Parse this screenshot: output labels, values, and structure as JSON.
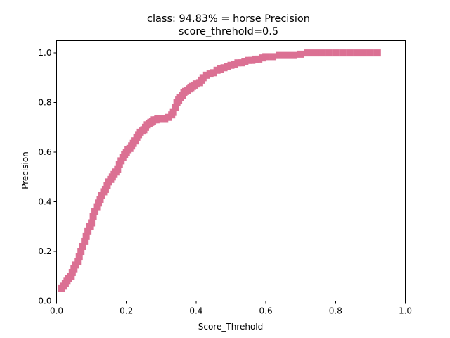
{
  "chart_data": {
    "type": "scatter",
    "title": "class: 94.83% = horse Precision",
    "subtitle": "score_threhold=0.5",
    "xlabel": "Score_Threhold",
    "ylabel": "Precision",
    "xlim": [
      0.0,
      1.0
    ],
    "ylim": [
      0.0,
      1.05
    ],
    "xticks": [
      "0.0",
      "0.2",
      "0.4",
      "0.6",
      "0.8",
      "1.0"
    ],
    "yticks": [
      "0.0",
      "0.2",
      "0.4",
      "0.6",
      "0.8",
      "1.0"
    ],
    "grid": false,
    "marker": "square",
    "series": [
      {
        "color": "#db7093",
        "x": [
          0.015,
          0.02,
          0.025,
          0.03,
          0.035,
          0.04,
          0.045,
          0.05,
          0.055,
          0.06,
          0.065,
          0.07,
          0.075,
          0.08,
          0.085,
          0.09,
          0.095,
          0.1,
          0.105,
          0.11,
          0.115,
          0.12,
          0.125,
          0.13,
          0.135,
          0.14,
          0.145,
          0.15,
          0.155,
          0.16,
          0.165,
          0.17,
          0.175,
          0.18,
          0.185,
          0.19,
          0.195,
          0.2,
          0.205,
          0.21,
          0.215,
          0.22,
          0.225,
          0.23,
          0.235,
          0.24,
          0.245,
          0.25,
          0.255,
          0.26,
          0.265,
          0.27,
          0.275,
          0.28,
          0.285,
          0.29,
          0.295,
          0.3,
          0.31,
          0.32,
          0.33,
          0.335,
          0.34,
          0.345,
          0.35,
          0.355,
          0.36,
          0.365,
          0.37,
          0.375,
          0.38,
          0.385,
          0.39,
          0.395,
          0.4,
          0.41,
          0.415,
          0.42,
          0.43,
          0.44,
          0.45,
          0.46,
          0.47,
          0.48,
          0.49,
          0.5,
          0.51,
          0.52,
          0.53,
          0.54,
          0.55,
          0.56,
          0.57,
          0.58,
          0.59,
          0.6,
          0.62,
          0.64,
          0.66,
          0.68,
          0.7,
          0.72,
          0.74,
          0.76,
          0.78,
          0.8,
          0.82,
          0.84,
          0.86,
          0.88,
          0.9,
          0.92
        ],
        "y": [
          0.05,
          0.06,
          0.07,
          0.08,
          0.09,
          0.1,
          0.115,
          0.13,
          0.145,
          0.16,
          0.18,
          0.2,
          0.22,
          0.24,
          0.26,
          0.28,
          0.3,
          0.315,
          0.34,
          0.36,
          0.38,
          0.395,
          0.41,
          0.425,
          0.44,
          0.45,
          0.465,
          0.48,
          0.49,
          0.5,
          0.51,
          0.52,
          0.53,
          0.55,
          0.565,
          0.58,
          0.59,
          0.6,
          0.61,
          0.615,
          0.625,
          0.635,
          0.645,
          0.66,
          0.67,
          0.68,
          0.685,
          0.69,
          0.7,
          0.71,
          0.715,
          0.72,
          0.725,
          0.73,
          0.73,
          0.735,
          0.735,
          0.735,
          0.735,
          0.74,
          0.75,
          0.76,
          0.78,
          0.8,
          0.81,
          0.82,
          0.83,
          0.84,
          0.845,
          0.85,
          0.855,
          0.86,
          0.865,
          0.87,
          0.875,
          0.88,
          0.89,
          0.9,
          0.91,
          0.915,
          0.92,
          0.93,
          0.935,
          0.94,
          0.945,
          0.95,
          0.955,
          0.96,
          0.96,
          0.965,
          0.97,
          0.97,
          0.975,
          0.975,
          0.98,
          0.985,
          0.985,
          0.99,
          0.99,
          0.99,
          0.995,
          1.0,
          1.0,
          1.0,
          1.0,
          1.0,
          1.0,
          1.0,
          1.0,
          1.0,
          1.0,
          1.0
        ]
      }
    ]
  }
}
